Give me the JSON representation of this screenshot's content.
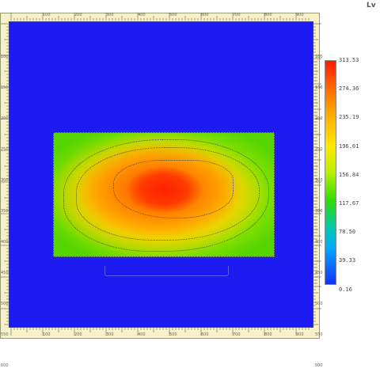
{
  "quantity_label": "Lv",
  "top_ticks": [
    "100",
    "200",
    "300",
    "400",
    "500",
    "600",
    "700",
    "800",
    "900"
  ],
  "left_ticks": [
    "100",
    "150",
    "200",
    "250",
    "300",
    "350",
    "400",
    "450",
    "500",
    "550",
    "600"
  ],
  "right_ticks": [
    "100",
    "150",
    "200",
    "250",
    "300",
    "350",
    "400",
    "450",
    "500",
    "550",
    "600"
  ],
  "colorscale": {
    "max": "313.53",
    "labels": [
      "313.53",
      "274.36",
      "235.19",
      "196.01",
      "156.84",
      "117.67",
      "78.50",
      "39.33",
      "0.16"
    ],
    "colors": {
      "background": "#1b1bf2",
      "peak": "#ff1f00",
      "edge": "#56d400"
    }
  }
}
